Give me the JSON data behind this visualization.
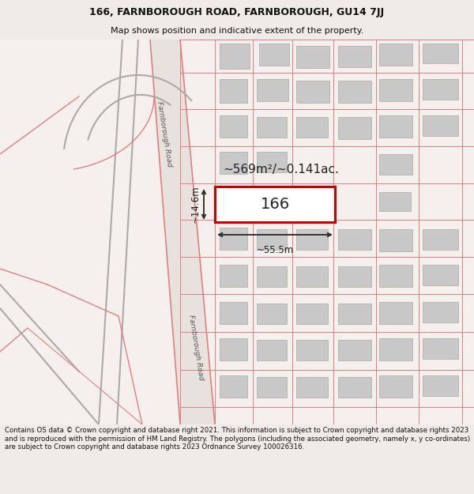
{
  "title_line1": "166, FARNBOROUGH ROAD, FARNBOROUGH, GU14 7JJ",
  "title_line2": "Map shows position and indicative extent of the property.",
  "footer_text": "Contains OS data © Crown copyright and database right 2021. This information is subject to Crown copyright and database rights 2023 and is reproduced with the permission of HM Land Registry. The polygons (including the associated geometry, namely x, y co-ordinates) are subject to Crown copyright and database rights 2023 Ordnance Survey 100026316.",
  "bg_color": "#f0ebe8",
  "map_bg": "#f5f0ee",
  "property_number": "166",
  "area_label": "~569m²/~0.141ac.",
  "width_label": "~55.5m",
  "height_label": "~14.6m",
  "road_label_top": "Farnborough Road",
  "road_label_bottom": "Farnborough Road",
  "highlight_color": "#cc0000",
  "line_color": "#333333",
  "pink_color": "#e08080",
  "gray_building": "#c8c8c8",
  "gray_road": "#aaaaaa",
  "title_fontsize": 9,
  "subtitle_fontsize": 8,
  "footer_fontsize": 6.2
}
